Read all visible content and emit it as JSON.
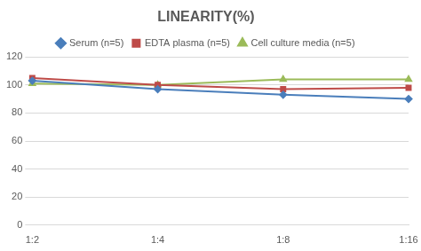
{
  "chart_data": {
    "type": "line",
    "title": "LINEARITY(%)",
    "categories": [
      "1:2",
      "1:4",
      "1:8",
      "1:16"
    ],
    "series": [
      {
        "name": "Serum (n=5)",
        "color": "#4a7ebb",
        "marker": "diamond",
        "values": [
          103,
          97,
          93,
          90
        ]
      },
      {
        "name": "EDTA plasma (n=5)",
        "color": "#be4b48",
        "marker": "square",
        "values": [
          105,
          100,
          97,
          98
        ]
      },
      {
        "name": "Cell culture media (n=5)",
        "color": "#9bbb59",
        "marker": "triangle",
        "values": [
          101,
          100,
          104,
          104
        ]
      }
    ],
    "ylim": [
      0,
      120
    ],
    "yticks": [
      0,
      20,
      40,
      60,
      80,
      100,
      120
    ],
    "grid": true,
    "legend": "top"
  }
}
